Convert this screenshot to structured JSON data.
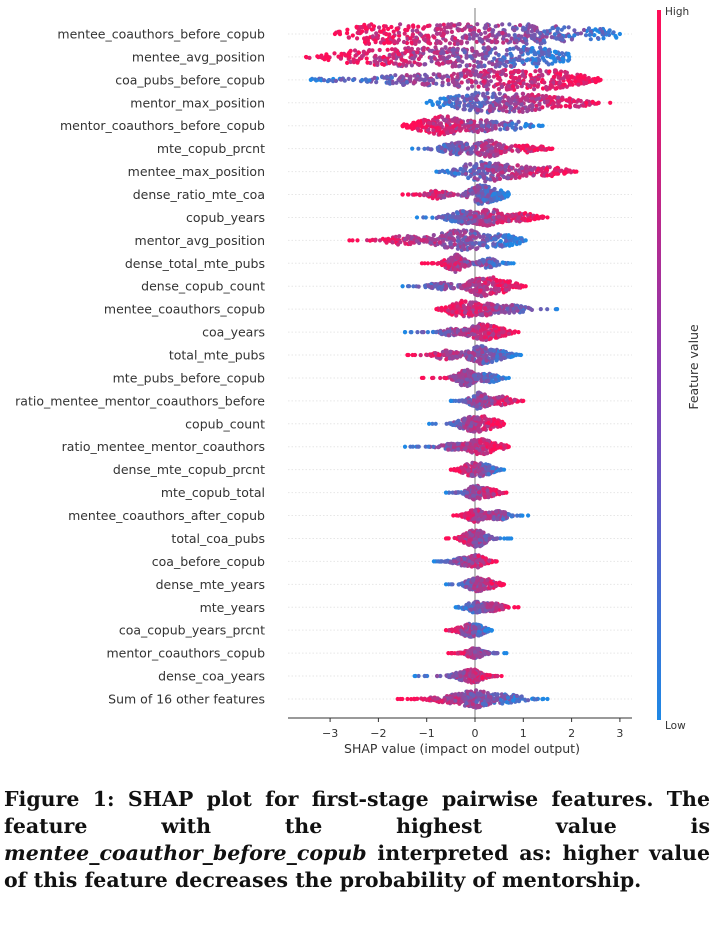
{
  "chart_data": {
    "type": "beeswarm",
    "xlabel": "SHAP value (impact on model output)",
    "xlim": [
      -3.9,
      3.35
    ],
    "xticks": [
      -3,
      -2,
      -1,
      0,
      1,
      2,
      3
    ],
    "colorbar": {
      "label": "Feature value",
      "high_label": "High",
      "low_label": "Low",
      "high_color": "#ff0d57",
      "low_color": "#1e88e5"
    },
    "features": [
      {
        "name": "mentee_coauthors_before_copub",
        "min": -2.9,
        "max": 3.0,
        "modes": [
          [
            -2.0,
            1.0
          ],
          [
            -1.3,
            0.9
          ],
          [
            -0.3,
            0.9
          ],
          [
            0.5,
            0.95
          ],
          [
            1.5,
            0.75
          ],
          [
            2.6,
            0.45
          ]
        ],
        "high_side": -1,
        "lean": 0.9
      },
      {
        "name": "mentee_avg_position",
        "min": -3.5,
        "max": 1.95,
        "modes": [
          [
            -2.6,
            0.5
          ],
          [
            -1.7,
            0.8
          ],
          [
            -0.7,
            0.8
          ],
          [
            0.3,
            1.0
          ],
          [
            0.8,
            0.9
          ],
          [
            1.5,
            0.5
          ]
        ],
        "high_side": -1,
        "lean": 0.8
      },
      {
        "name": "coa_pubs_before_copub",
        "min": -3.4,
        "max": 2.6,
        "modes": [
          [
            -3.0,
            0.15
          ],
          [
            -1.5,
            0.45
          ],
          [
            -0.4,
            0.55
          ],
          [
            0.5,
            1.0
          ],
          [
            1.0,
            0.95
          ],
          [
            1.8,
            0.55
          ]
        ],
        "high_side": 1,
        "lean": 0.8
      },
      {
        "name": "mentor_max_position",
        "min": -1.0,
        "max": 2.8,
        "modes": [
          [
            -0.5,
            0.55
          ],
          [
            0.2,
            0.9
          ],
          [
            0.7,
            0.75
          ],
          [
            1.3,
            0.6
          ],
          [
            2.0,
            0.45
          ]
        ],
        "high_side": 1,
        "lean": 0.8
      },
      {
        "name": "mentor_coauthors_before_copub",
        "min": -1.5,
        "max": 1.4,
        "modes": [
          [
            -1.1,
            0.45
          ],
          [
            -0.6,
            0.9
          ],
          [
            0.1,
            0.65
          ],
          [
            0.8,
            0.45
          ]
        ],
        "high_side": -1,
        "lean": 0.8
      },
      {
        "name": "mte_copub_prcnt",
        "min": -1.3,
        "max": 1.6,
        "modes": [
          [
            -0.4,
            0.6
          ],
          [
            0.3,
            0.8
          ],
          [
            1.1,
            0.4
          ]
        ],
        "high_side": 1,
        "lean": 0.7
      },
      {
        "name": "mentee_max_position",
        "min": -0.8,
        "max": 2.1,
        "modes": [
          [
            -0.2,
            0.6
          ],
          [
            0.3,
            0.9
          ],
          [
            0.9,
            0.6
          ],
          [
            1.6,
            0.45
          ]
        ],
        "high_side": 1,
        "lean": 0.8
      },
      {
        "name": "dense_ratio_mte_coa",
        "min": -1.5,
        "max": 0.7,
        "modes": [
          [
            -0.8,
            0.45
          ],
          [
            0.1,
            0.9
          ],
          [
            0.5,
            0.45
          ]
        ],
        "high_side": -1,
        "lean": 0.75
      },
      {
        "name": "copub_years",
        "min": -1.2,
        "max": 1.5,
        "modes": [
          [
            -0.3,
            0.6
          ],
          [
            0.3,
            0.85
          ],
          [
            1.0,
            0.45
          ]
        ],
        "high_side": 1,
        "lean": 0.7
      },
      {
        "name": "mentor_avg_position",
        "min": -2.6,
        "max": 1.05,
        "modes": [
          [
            -1.5,
            0.45
          ],
          [
            -0.6,
            0.6
          ],
          [
            -0.1,
            0.85
          ],
          [
            0.6,
            0.55
          ]
        ],
        "high_side": -1,
        "lean": 0.8
      },
      {
        "name": "dense_total_mte_pubs",
        "min": -1.1,
        "max": 0.8,
        "modes": [
          [
            -0.4,
            0.9
          ],
          [
            0.3,
            0.5
          ]
        ],
        "high_side": -1,
        "lean": 0.65
      },
      {
        "name": "dense_copub_count",
        "min": -1.5,
        "max": 1.05,
        "modes": [
          [
            -0.7,
            0.35
          ],
          [
            0.15,
            1.0
          ],
          [
            0.6,
            0.55
          ]
        ],
        "high_side": 1,
        "lean": 0.75
      },
      {
        "name": "mentee_coauthors_copub",
        "min": -0.8,
        "max": 1.7,
        "modes": [
          [
            -0.3,
            0.8
          ],
          [
            0.2,
            0.6
          ],
          [
            0.8,
            0.4
          ]
        ],
        "high_side": -1,
        "lean": 0.65
      },
      {
        "name": "coa_years",
        "min": -1.45,
        "max": 0.9,
        "modes": [
          [
            -0.5,
            0.35
          ],
          [
            0.1,
            0.8
          ],
          [
            0.5,
            0.4
          ]
        ],
        "high_side": 1,
        "lean": 0.7
      },
      {
        "name": "total_mte_pubs",
        "min": -1.4,
        "max": 0.95,
        "modes": [
          [
            -0.6,
            0.45
          ],
          [
            0.1,
            0.85
          ],
          [
            0.5,
            0.4
          ]
        ],
        "high_side": -1,
        "lean": 0.65
      },
      {
        "name": "mte_pubs_before_copub",
        "min": -1.1,
        "max": 0.7,
        "modes": [
          [
            -0.2,
            0.85
          ],
          [
            0.3,
            0.5
          ]
        ],
        "high_side": -1,
        "lean": 0.6
      },
      {
        "name": "ratio_mentee_mentor_coauthors_before",
        "min": -0.5,
        "max": 1.0,
        "modes": [
          [
            0.1,
            0.85
          ],
          [
            0.6,
            0.45
          ]
        ],
        "high_side": 1,
        "lean": 0.7
      },
      {
        "name": "copub_count",
        "min": -0.95,
        "max": 0.6,
        "modes": [
          [
            -0.2,
            0.5
          ],
          [
            0.1,
            0.7
          ],
          [
            0.4,
            0.35
          ]
        ],
        "high_side": 1,
        "lean": 0.6
      },
      {
        "name": "ratio_mentee_mentor_coauthors",
        "min": -1.45,
        "max": 0.7,
        "modes": [
          [
            -0.5,
            0.3
          ],
          [
            0.05,
            0.75
          ],
          [
            0.4,
            0.35
          ]
        ],
        "high_side": 1,
        "lean": 0.6
      },
      {
        "name": "dense_mte_copub_prcnt",
        "min": -0.5,
        "max": 0.6,
        "modes": [
          [
            -0.1,
            0.6
          ],
          [
            0.2,
            0.5
          ]
        ],
        "high_side": -1,
        "lean": 0.6
      },
      {
        "name": "mte_copub_total",
        "min": -0.6,
        "max": 0.65,
        "modes": [
          [
            0.0,
            0.65
          ],
          [
            0.3,
            0.35
          ]
        ],
        "high_side": 1,
        "lean": 0.6
      },
      {
        "name": "mentee_coauthors_after_copub",
        "min": -0.45,
        "max": 1.1,
        "modes": [
          [
            0.0,
            0.65
          ],
          [
            0.5,
            0.45
          ]
        ],
        "high_side": -1,
        "lean": 0.6
      },
      {
        "name": "total_coa_pubs",
        "min": -0.6,
        "max": 0.75,
        "modes": [
          [
            -0.1,
            0.55
          ],
          [
            0.1,
            0.55
          ]
        ],
        "high_side": -1,
        "lean": 0.55
      },
      {
        "name": "coa_before_copub",
        "min": -0.85,
        "max": 0.45,
        "modes": [
          [
            -0.3,
            0.35
          ],
          [
            0.05,
            0.6
          ]
        ],
        "high_side": 1,
        "lean": 0.55
      },
      {
        "name": "dense_mte_years",
        "min": -0.6,
        "max": 0.6,
        "modes": [
          [
            0.0,
            0.6
          ],
          [
            0.3,
            0.4
          ]
        ],
        "high_side": 1,
        "lean": 0.6
      },
      {
        "name": "mte_years",
        "min": -0.4,
        "max": 0.9,
        "modes": [
          [
            0.0,
            0.55
          ],
          [
            0.4,
            0.4
          ]
        ],
        "high_side": 1,
        "lean": 0.65
      },
      {
        "name": "coa_copub_years_prcnt",
        "min": -0.6,
        "max": 0.35,
        "modes": [
          [
            -0.2,
            0.45
          ],
          [
            0.05,
            0.45
          ]
        ],
        "high_side": -1,
        "lean": 0.55
      },
      {
        "name": "mentor_coauthors_copub",
        "min": -0.55,
        "max": 0.65,
        "modes": [
          [
            0.0,
            0.5
          ]
        ],
        "high_side": -1,
        "lean": 0.55
      },
      {
        "name": "dense_coa_years",
        "min": -1.25,
        "max": 0.55,
        "modes": [
          [
            -0.3,
            0.35
          ],
          [
            0.0,
            0.6
          ]
        ],
        "high_side": 1,
        "lean": 0.55
      },
      {
        "name": "Sum of 16 other features",
        "min": -1.6,
        "max": 1.5,
        "modes": [
          [
            -0.6,
            0.35
          ],
          [
            0.0,
            0.85
          ],
          [
            0.7,
            0.45
          ]
        ],
        "high_side": -1,
        "lean": 0.5
      }
    ]
  },
  "caption": {
    "prefix": "Figure 1: SHAP plot for first-stage pairwise features. The feature with the highest value is ",
    "feature": "mentee_coauthor_before_copub",
    "suffix": " interpreted as: higher value of this feature decreases the probability of mentorship."
  }
}
